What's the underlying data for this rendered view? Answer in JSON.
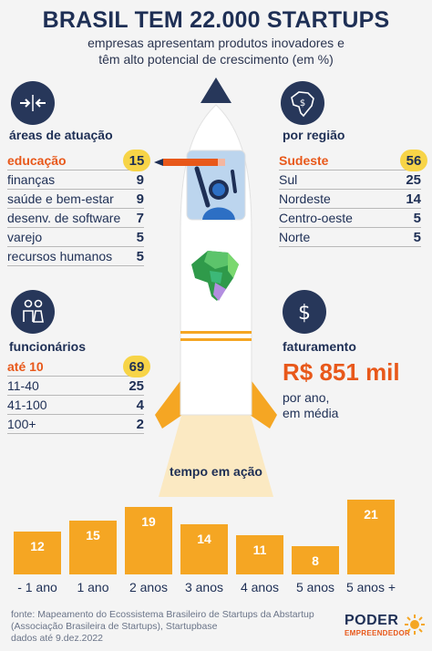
{
  "header": {
    "title": "BRASIL TEM 22.000 STARTUPS",
    "subtitle_line1": "empresas apresentam produtos inovadores e",
    "subtitle_line2": "têm alto potencial de crescimento (em %)"
  },
  "areas": {
    "label": "áreas de atuação",
    "items": [
      {
        "label": "educação",
        "value": "15"
      },
      {
        "label": "finanças",
        "value": "9"
      },
      {
        "label": "saúde e bem-estar",
        "value": "9"
      },
      {
        "label": "desenv. de software",
        "value": "7"
      },
      {
        "label": "varejo",
        "value": "5"
      },
      {
        "label": "recursos humanos",
        "value": "5"
      }
    ]
  },
  "regions": {
    "label": "por região",
    "items": [
      {
        "label": "Sudeste",
        "value": "56"
      },
      {
        "label": "Sul",
        "value": "25"
      },
      {
        "label": "Nordeste",
        "value": "14"
      },
      {
        "label": "Centro-oeste",
        "value": "5"
      },
      {
        "label": "Norte",
        "value": "5"
      }
    ]
  },
  "employees": {
    "label": "funcionários",
    "items": [
      {
        "label": "até 10",
        "value": "69"
      },
      {
        "label": "11-40",
        "value": "25"
      },
      {
        "label": "41-100",
        "value": "4"
      },
      {
        "label": "100+",
        "value": "2"
      }
    ]
  },
  "revenue": {
    "label": "faturamento",
    "value": "R$ 851 mil",
    "note_line1": "por ano,",
    "note_line2": "em média"
  },
  "chart_data": {
    "type": "bar",
    "title": "tempo em ação",
    "categories": [
      "- 1 ano",
      "1 ano",
      "2 anos",
      "3 anos",
      "4 anos",
      "5 anos",
      "5 anos +"
    ],
    "values": [
      12,
      15,
      19,
      14,
      11,
      8,
      21
    ],
    "ylim": [
      0,
      21
    ]
  },
  "footer": {
    "line1": "fonte: Mapeamento do Ecossistema Brasileiro de Startups da Abstartup",
    "line2": "(Associação Brasileira de Startups), Startupbase",
    "line3": "dados até 9.dez.2022"
  },
  "logo": {
    "main": "PODER",
    "sub": "EMPREENDEDOR"
  },
  "colors": {
    "navy": "#1e2f55",
    "orange": "#e8581a",
    "yellow": "#f7d447",
    "bar": "#f5a623"
  },
  "icons": [
    "arrows-inward-icon",
    "brazil-map-icon",
    "people-icon",
    "dollar-icon",
    "rocket-icon",
    "astronaut-icon",
    "pencil-icon",
    "sun-logo-icon"
  ]
}
